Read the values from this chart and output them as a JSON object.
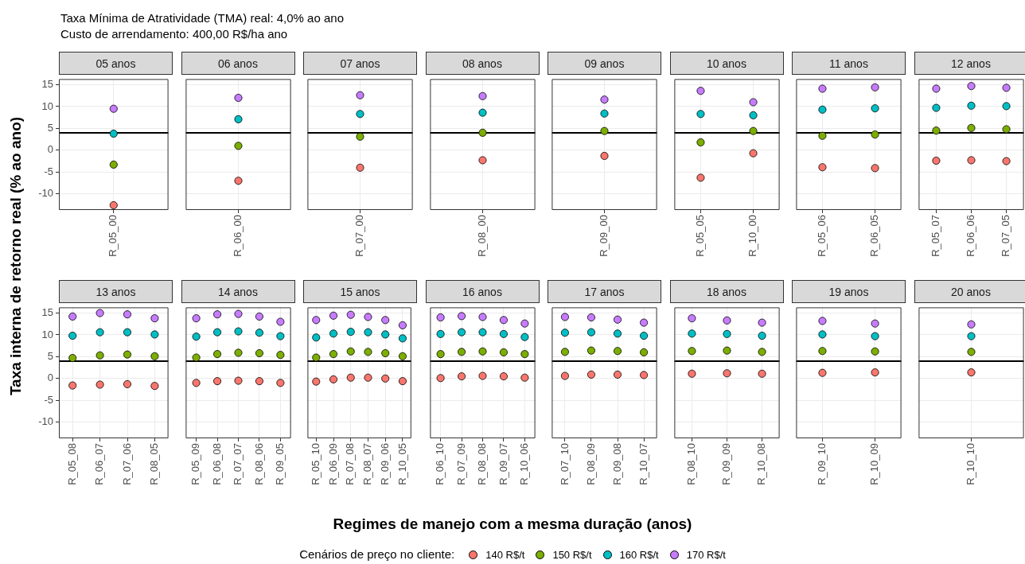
{
  "chart_data": [
    {
      "type": "scatter",
      "title": "05 anos",
      "annotations": [
        "Taxa Mínima de Atratividade (TMA) real: 4,0% ao ano",
        "Custo de arrendamento: 400,00 R$/ha ano"
      ],
      "ylabel": "Taxa interna de retorno real (% ao ano)",
      "legend": "bottom",
      "legend_title": "Cenários de preço no cliente:",
      "categories": [
        "R_05_00"
      ],
      "series": [
        {
          "name": "140 R$/t",
          "color": "#f8766d",
          "values": [
            -12.6
          ]
        },
        {
          "name": "150 R$/t",
          "color": "#7cae00",
          "values": [
            -3.3
          ]
        },
        {
          "name": "160 R$/t",
          "color": "#00bfc4",
          "values": [
            3.8
          ]
        },
        {
          "name": "170 R$/t",
          "color": "#c77cff",
          "values": [
            9.5
          ]
        }
      ],
      "ylim": [
        -13.7,
        16.3
      ],
      "yticks": [
        -10,
        -5,
        0,
        5,
        10,
        15
      ],
      "ref_lines": [
        {
          "axis": "y",
          "value": 4,
          "color": "#000000"
        }
      ],
      "grid": true,
      "marker": "circle"
    },
    {
      "type": "scatter",
      "title": "06 anos",
      "categories": [
        "R_06_00"
      ],
      "series": [
        {
          "color": "#f8766d",
          "values": [
            -7.0
          ]
        },
        {
          "color": "#7cae00",
          "values": [
            1.0
          ]
        },
        {
          "color": "#00bfc4",
          "values": [
            7.1
          ]
        },
        {
          "color": "#c77cff",
          "values": [
            12.0
          ]
        }
      ],
      "ylim": [
        -13.7,
        16.3
      ],
      "yticks": [
        -10,
        -5,
        0,
        5,
        10,
        15
      ],
      "tick_labels": "x",
      "ref_lines": [
        {
          "axis": "y",
          "value": 4,
          "color": "#000000"
        }
      ],
      "grid": true,
      "marker": "circle"
    },
    {
      "type": "scatter",
      "title": "07 anos",
      "categories": [
        "R_07_00"
      ],
      "series": [
        {
          "color": "#f8766d",
          "values": [
            -4.0
          ]
        },
        {
          "color": "#7cae00",
          "values": [
            3.1
          ]
        },
        {
          "color": "#00bfc4",
          "values": [
            8.3
          ]
        },
        {
          "color": "#c77cff",
          "values": [
            12.6
          ]
        }
      ],
      "ylim": [
        -13.7,
        16.3
      ],
      "yticks": [
        -10,
        -5,
        0,
        5,
        10,
        15
      ],
      "tick_labels": "x",
      "ref_lines": [
        {
          "axis": "y",
          "value": 4,
          "color": "#000000"
        }
      ],
      "grid": true,
      "marker": "circle"
    },
    {
      "type": "scatter",
      "title": "08 anos",
      "categories": [
        "R_08_00"
      ],
      "series": [
        {
          "color": "#f8766d",
          "values": [
            -2.3
          ]
        },
        {
          "color": "#7cae00",
          "values": [
            4.0
          ]
        },
        {
          "color": "#00bfc4",
          "values": [
            8.6
          ]
        },
        {
          "color": "#c77cff",
          "values": [
            12.4
          ]
        }
      ],
      "ylim": [
        -13.7,
        16.3
      ],
      "yticks": [
        -10,
        -5,
        0,
        5,
        10,
        15
      ],
      "tick_labels": "x",
      "ref_lines": [
        {
          "axis": "y",
          "value": 4,
          "color": "#000000"
        }
      ],
      "grid": true,
      "marker": "circle"
    },
    {
      "type": "scatter",
      "title": "09 anos",
      "categories": [
        "R_09_00"
      ],
      "series": [
        {
          "color": "#f8766d",
          "values": [
            -1.3
          ]
        },
        {
          "color": "#7cae00",
          "values": [
            4.4
          ]
        },
        {
          "color": "#00bfc4",
          "values": [
            8.4
          ]
        },
        {
          "color": "#c77cff",
          "values": [
            11.6
          ]
        }
      ],
      "ylim": [
        -13.7,
        16.3
      ],
      "yticks": [
        -10,
        -5,
        0,
        5,
        10,
        15
      ],
      "tick_labels": "x",
      "ref_lines": [
        {
          "axis": "y",
          "value": 4,
          "color": "#000000"
        }
      ],
      "grid": true,
      "marker": "circle"
    },
    {
      "type": "scatter",
      "title": "10 anos",
      "categories": [
        "R_05_05",
        "R_10_00"
      ],
      "series": [
        {
          "color": "#f8766d",
          "values": [
            -6.3,
            -0.7
          ]
        },
        {
          "color": "#7cae00",
          "values": [
            1.8,
            4.4
          ]
        },
        {
          "color": "#00bfc4",
          "values": [
            8.3,
            8.0
          ]
        },
        {
          "color": "#c77cff",
          "values": [
            13.6,
            11.0
          ]
        }
      ],
      "ylim": [
        -13.7,
        16.3
      ],
      "yticks": [
        -10,
        -5,
        0,
        5,
        10,
        15
      ],
      "tick_labels": "x",
      "ref_lines": [
        {
          "axis": "y",
          "value": 4,
          "color": "#000000"
        }
      ],
      "grid": true,
      "marker": "circle"
    },
    {
      "type": "scatter",
      "title": "11 anos",
      "categories": [
        "R_05_06",
        "R_06_05"
      ],
      "series": [
        {
          "color": "#f8766d",
          "values": [
            -3.9,
            -4.1
          ]
        },
        {
          "color": "#7cae00",
          "values": [
            3.3,
            3.6
          ]
        },
        {
          "color": "#00bfc4",
          "values": [
            9.3,
            9.6
          ]
        },
        {
          "color": "#c77cff",
          "values": [
            14.1,
            14.4
          ]
        }
      ],
      "ylim": [
        -13.7,
        16.3
      ],
      "yticks": [
        -10,
        -5,
        0,
        5,
        10,
        15
      ],
      "tick_labels": "x",
      "ref_lines": [
        {
          "axis": "y",
          "value": 4,
          "color": "#000000"
        }
      ],
      "grid": true,
      "marker": "circle"
    },
    {
      "type": "scatter",
      "title": "12 anos",
      "categories": [
        "R_05_07",
        "R_06_06",
        "R_07_05"
      ],
      "series": [
        {
          "color": "#f8766d",
          "values": [
            -2.4,
            -2.3,
            -2.5
          ]
        },
        {
          "color": "#7cae00",
          "values": [
            4.5,
            5.1,
            4.8
          ]
        },
        {
          "color": "#00bfc4",
          "values": [
            9.7,
            10.2,
            10.1
          ]
        },
        {
          "color": "#c77cff",
          "values": [
            14.1,
            14.7,
            14.3
          ]
        }
      ],
      "ylim": [
        -13.7,
        16.3
      ],
      "yticks": [
        -10,
        -5,
        0,
        5,
        10,
        15
      ],
      "tick_labels": "x",
      "ref_lines": [
        {
          "axis": "y",
          "value": 4,
          "color": "#000000"
        }
      ],
      "grid": true,
      "marker": "circle"
    },
    {
      "type": "scatter",
      "title": "13 anos",
      "categories": [
        "R_05_08",
        "R_06_07",
        "R_07_06",
        "R_08_05"
      ],
      "series": [
        {
          "color": "#f8766d",
          "values": [
            -1.6,
            -1.4,
            -1.3,
            -1.7
          ]
        },
        {
          "color": "#7cae00",
          "values": [
            4.7,
            5.3,
            5.5,
            5.1
          ]
        },
        {
          "color": "#00bfc4",
          "values": [
            9.8,
            10.6,
            10.6,
            10.1
          ]
        },
        {
          "color": "#c77cff",
          "values": [
            14.2,
            15.0,
            14.7,
            13.8
          ]
        }
      ],
      "ylim": [
        -13.7,
        16.3
      ],
      "yticks": [
        -10,
        -5,
        0,
        5,
        10,
        15
      ],
      "ref_lines": [
        {
          "axis": "y",
          "value": 4,
          "color": "#000000"
        }
      ],
      "grid": true,
      "marker": "circle"
    },
    {
      "type": "scatter",
      "title": "14 anos",
      "categories": [
        "R_05_09",
        "R_06_08",
        "R_07_07",
        "R_08_06",
        "R_09_05"
      ],
      "series": [
        {
          "color": "#f8766d",
          "values": [
            -1.0,
            -0.6,
            -0.5,
            -0.6,
            -1.0
          ]
        },
        {
          "color": "#7cae00",
          "values": [
            4.8,
            5.6,
            5.9,
            5.8,
            5.4
          ]
        },
        {
          "color": "#00bfc4",
          "values": [
            9.6,
            10.6,
            10.8,
            10.5,
            9.7
          ]
        },
        {
          "color": "#c77cff",
          "values": [
            13.8,
            14.7,
            14.8,
            14.2,
            13.0
          ]
        }
      ],
      "ylim": [
        -13.7,
        16.3
      ],
      "yticks": [
        -10,
        -5,
        0,
        5,
        10,
        15
      ],
      "tick_labels": "x",
      "ref_lines": [
        {
          "axis": "y",
          "value": 4,
          "color": "#000000"
        }
      ],
      "grid": true,
      "marker": "circle"
    },
    {
      "type": "scatter",
      "title": "15 anos",
      "categories": [
        "R_05_10",
        "R_06_09",
        "R_07_08",
        "R_08_07",
        "R_09_06",
        "R_10_05"
      ],
      "series": [
        {
          "color": "#f8766d",
          "values": [
            -0.7,
            -0.2,
            0.2,
            0.2,
            0.0,
            -0.6
          ]
        },
        {
          "color": "#7cae00",
          "values": [
            4.8,
            5.6,
            6.2,
            6.1,
            5.8,
            5.1
          ]
        },
        {
          "color": "#00bfc4",
          "values": [
            9.4,
            10.3,
            10.7,
            10.6,
            10.1,
            9.2
          ]
        },
        {
          "color": "#c77cff",
          "values": [
            13.4,
            14.4,
            14.6,
            14.1,
            13.4,
            12.2
          ]
        }
      ],
      "ylim": [
        -13.7,
        16.3
      ],
      "yticks": [
        -10,
        -5,
        0,
        5,
        10,
        15
      ],
      "tick_labels": "x",
      "ref_lines": [
        {
          "axis": "y",
          "value": 4,
          "color": "#000000"
        }
      ],
      "grid": true,
      "marker": "circle"
    },
    {
      "type": "scatter",
      "title": "16 anos",
      "xlabel": "Regimes de manejo com a mesma duração (anos)",
      "categories": [
        "R_06_10",
        "R_07_09",
        "R_08_08",
        "R_09_07",
        "R_10_06"
      ],
      "series": [
        {
          "color": "#f8766d",
          "values": [
            0.1,
            0.5,
            0.6,
            0.5,
            0.2
          ]
        },
        {
          "color": "#7cae00",
          "values": [
            5.6,
            6.1,
            6.2,
            6.0,
            5.6
          ]
        },
        {
          "color": "#00bfc4",
          "values": [
            10.2,
            10.6,
            10.6,
            10.2,
            9.5
          ]
        },
        {
          "color": "#c77cff",
          "values": [
            14.0,
            14.3,
            14.1,
            13.4,
            12.6
          ]
        }
      ],
      "ylim": [
        -13.7,
        16.3
      ],
      "yticks": [
        -10,
        -5,
        0,
        5,
        10,
        15
      ],
      "tick_labels": "x",
      "ref_lines": [
        {
          "axis": "y",
          "value": 4,
          "color": "#000000"
        }
      ],
      "grid": true,
      "marker": "circle"
    },
    {
      "type": "scatter",
      "title": "17 anos",
      "categories": [
        "R_07_10",
        "R_08_09",
        "R_09_08",
        "R_10_07"
      ],
      "series": [
        {
          "color": "#f8766d",
          "values": [
            0.6,
            0.9,
            0.9,
            0.8
          ]
        },
        {
          "color": "#7cae00",
          "values": [
            6.1,
            6.4,
            6.3,
            6.0
          ]
        },
        {
          "color": "#00bfc4",
          "values": [
            10.5,
            10.6,
            10.3,
            9.8
          ]
        },
        {
          "color": "#c77cff",
          "values": [
            14.1,
            14.0,
            13.5,
            12.8
          ]
        }
      ],
      "ylim": [
        -13.7,
        16.3
      ],
      "yticks": [
        -10,
        -5,
        0,
        5,
        10,
        15
      ],
      "tick_labels": "x",
      "ref_lines": [
        {
          "axis": "y",
          "value": 4,
          "color": "#000000"
        }
      ],
      "grid": true,
      "marker": "circle"
    },
    {
      "type": "scatter",
      "title": "18 anos",
      "categories": [
        "R_08_10",
        "R_09_09",
        "R_10_08"
      ],
      "series": [
        {
          "color": "#f8766d",
          "values": [
            1.1,
            1.2,
            1.1
          ]
        },
        {
          "color": "#7cae00",
          "values": [
            6.3,
            6.4,
            6.1
          ]
        },
        {
          "color": "#00bfc4",
          "values": [
            10.3,
            10.2,
            9.8
          ]
        },
        {
          "color": "#c77cff",
          "values": [
            13.8,
            13.3,
            12.8
          ]
        }
      ],
      "ylim": [
        -13.7,
        16.3
      ],
      "yticks": [
        -10,
        -5,
        0,
        5,
        10,
        15
      ],
      "tick_labels": "x",
      "ref_lines": [
        {
          "axis": "y",
          "value": 4,
          "color": "#000000"
        }
      ],
      "grid": true,
      "marker": "circle"
    },
    {
      "type": "scatter",
      "title": "19 anos",
      "categories": [
        "R_09_10",
        "R_10_09"
      ],
      "series": [
        {
          "color": "#f8766d",
          "values": [
            1.3,
            1.4
          ]
        },
        {
          "color": "#7cae00",
          "values": [
            6.3,
            6.2
          ]
        },
        {
          "color": "#00bfc4",
          "values": [
            10.1,
            9.7
          ]
        },
        {
          "color": "#c77cff",
          "values": [
            13.2,
            12.6
          ]
        }
      ],
      "ylim": [
        -13.7,
        16.3
      ],
      "yticks": [
        -10,
        -5,
        0,
        5,
        10,
        15
      ],
      "tick_labels": "x",
      "ref_lines": [
        {
          "axis": "y",
          "value": 4,
          "color": "#000000"
        }
      ],
      "grid": true,
      "marker": "circle"
    },
    {
      "type": "scatter",
      "title": "20 anos",
      "categories": [
        "R_10_10"
      ],
      "series": [
        {
          "color": "#f8766d",
          "values": [
            1.4
          ]
        },
        {
          "color": "#7cae00",
          "values": [
            6.1
          ]
        },
        {
          "color": "#00bfc4",
          "values": [
            9.7
          ]
        },
        {
          "color": "#c77cff",
          "values": [
            12.4
          ]
        }
      ],
      "ylim": [
        -13.7,
        16.3
      ],
      "yticks": [
        -10,
        -5,
        0,
        5,
        10,
        15
      ],
      "tick_labels": "x",
      "ref_lines": [
        {
          "axis": "y",
          "value": 4,
          "color": "#000000"
        }
      ],
      "grid": true,
      "marker": "circle"
    }
  ]
}
